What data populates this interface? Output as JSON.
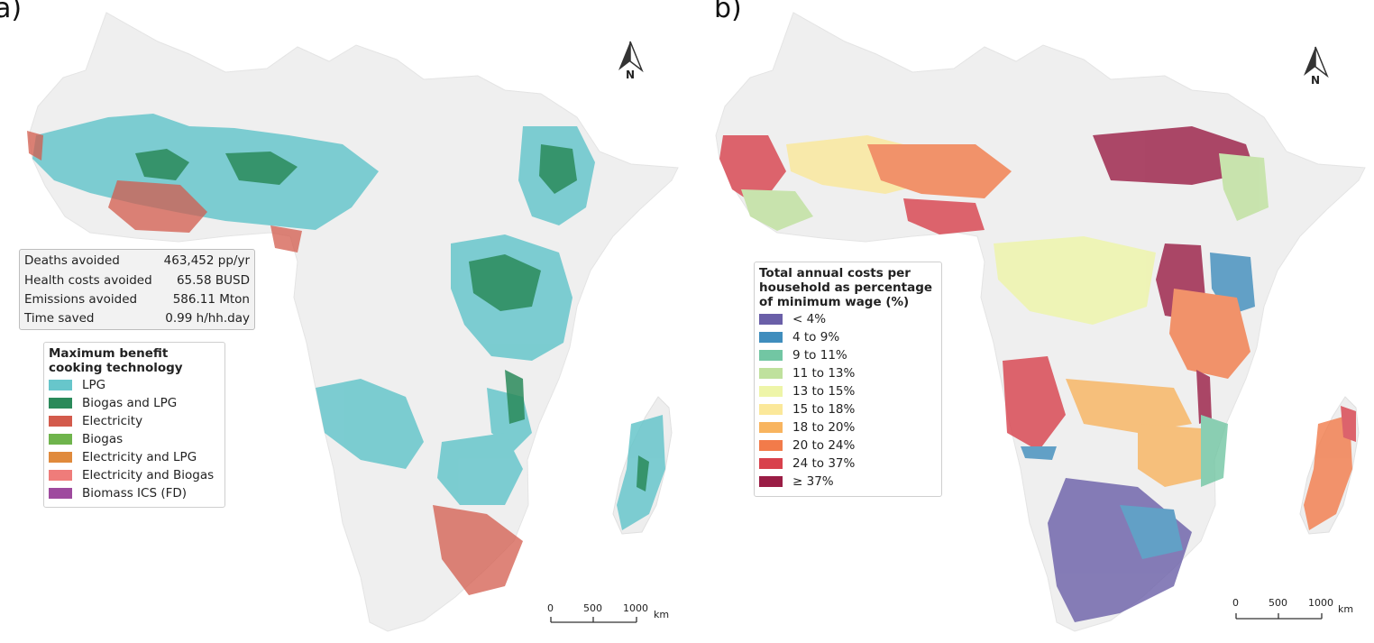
{
  "panel_a": {
    "letter": "a)",
    "stats": [
      {
        "label": "Deaths avoided",
        "value": "463,452 pp/yr"
      },
      {
        "label": "Health costs avoided",
        "value": "65.58 BUSD"
      },
      {
        "label": "Emissions avoided",
        "value": "586.11 Mton"
      },
      {
        "label": "Time saved",
        "value": "0.99 h/hh.day"
      }
    ],
    "legend": {
      "title_line1": "Maximum benefit",
      "title_line2": "cooking technology",
      "items": [
        {
          "label": "LPG",
          "color": "#67c6cb"
        },
        {
          "label": "Biogas and LPG",
          "color": "#2a8a5a"
        },
        {
          "label": "Electricity",
          "color": "#d35b4c"
        },
        {
          "label": "Biogas",
          "color": "#6fb44c"
        },
        {
          "label": "Electricity and LPG",
          "color": "#e08a3c"
        },
        {
          "label": "Electricity and Biogas",
          "color": "#ef7c7a"
        },
        {
          "label": "Biomass ICS (FD)",
          "color": "#9e4a9e"
        }
      ]
    },
    "north": "N",
    "scale": {
      "ticks": [
        "0",
        "500",
        "1000"
      ],
      "unit": "km"
    }
  },
  "panel_b": {
    "letter": "b)",
    "legend": {
      "title_line1": "Total annual costs per",
      "title_line2": "household as percentage",
      "title_line3": "of minimum wage (%)",
      "items": [
        {
          "label": "< 4%",
          "color": "#6a5fa8"
        },
        {
          "label": "4 to 9%",
          "color": "#3f8dbd"
        },
        {
          "label": "9 to 11%",
          "color": "#72c6a3"
        },
        {
          "label": "11 to 13%",
          "color": "#bfe19d"
        },
        {
          "label": "13 to 15%",
          "color": "#eef5a8"
        },
        {
          "label": "15 to 18%",
          "color": "#fbe89a"
        },
        {
          "label": "18 to 20%",
          "color": "#f8b45f"
        },
        {
          "label": "20 to 24%",
          "color": "#f27b4a"
        },
        {
          "label": "24 to 37%",
          "color": "#d8414c"
        },
        {
          "label": "≥ 37%",
          "color": "#9a1d45"
        }
      ]
    },
    "north": "N",
    "scale": {
      "ticks": [
        "0",
        "500",
        "1000"
      ],
      "unit": "km"
    }
  }
}
